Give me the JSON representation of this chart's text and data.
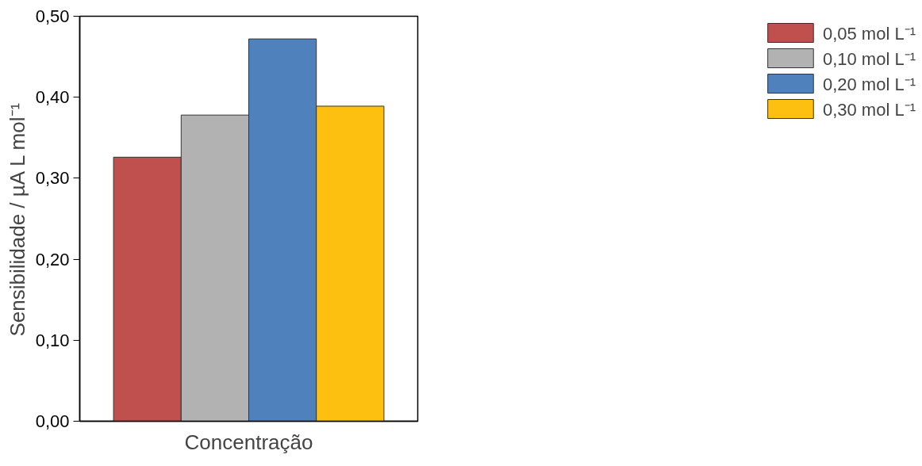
{
  "chart_data": {
    "type": "bar",
    "xlabel": "Concentração",
    "ylabel": "Sensibilidade / µA L mol⁻¹",
    "categories": [
      null
    ],
    "series": [
      {
        "name": "0,05 mol L⁻¹",
        "color": "#c0504d",
        "values": [
          0.326
        ]
      },
      {
        "name": "0,10 mol L⁻¹",
        "color": "#b2b2b2",
        "values": [
          0.378
        ]
      },
      {
        "name": "0,20 mol L⁻¹",
        "color": "#4f81bd",
        "values": [
          0.472
        ]
      },
      {
        "name": "0,30 mol L⁻¹",
        "color": "#fdc010",
        "values": [
          0.389
        ]
      }
    ],
    "ylim": [
      0,
      0.5
    ],
    "yticks": [
      {
        "value": 0,
        "label": "0,00"
      },
      {
        "value": 0.1,
        "label": "0,10"
      },
      {
        "value": 0.2,
        "label": "0,20"
      },
      {
        "value": 0.3,
        "label": "0,30"
      },
      {
        "value": 0.4,
        "label": "0,40"
      },
      {
        "value": 0.5,
        "label": "0,50"
      }
    ],
    "grid": false,
    "legend": "right"
  }
}
